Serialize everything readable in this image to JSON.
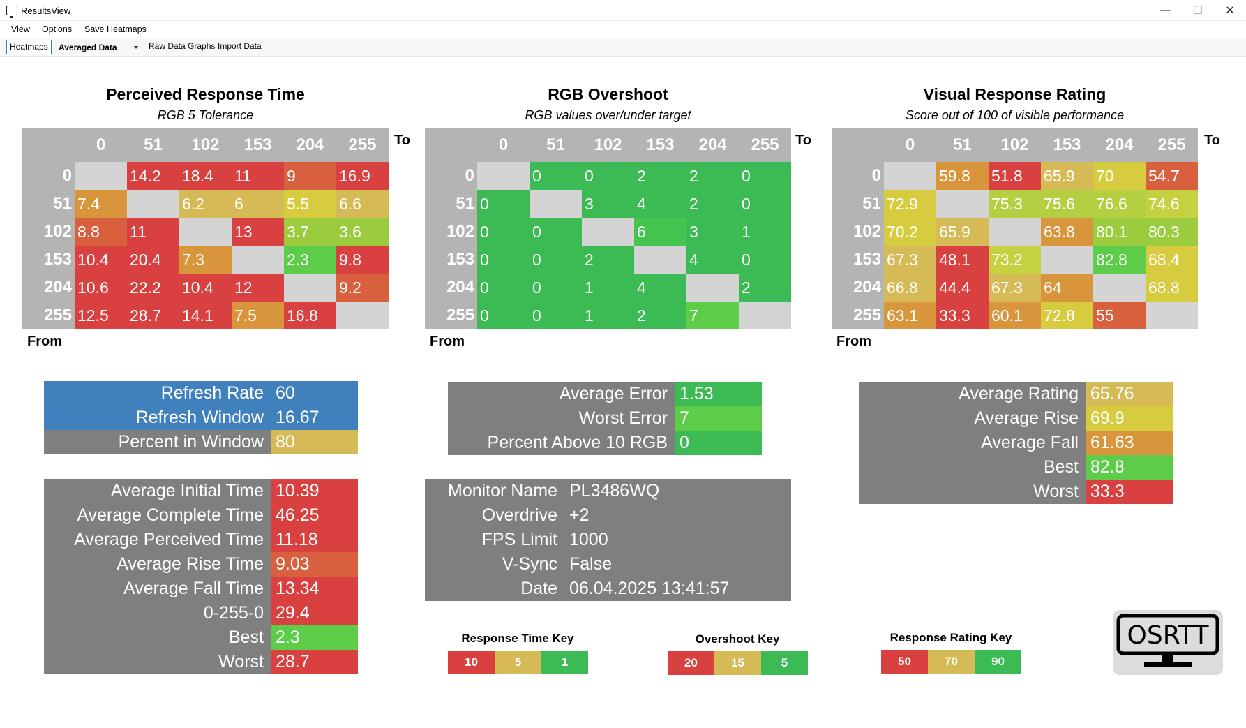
{
  "window": {
    "title": "ResultsView",
    "minimize": "—",
    "maximize": "☐",
    "close": "✕"
  },
  "menu": [
    "View",
    "Options",
    "Save Heatmaps"
  ],
  "toolbar": {
    "heatmaps": "Heatmaps",
    "combo": "Averaged Data",
    "raw": "Raw Data Graphs",
    "import": "Import Data"
  },
  "colors": {
    "red": "#d94040",
    "orange_red": "#d8603e",
    "orange": "#d9953c",
    "amber": "#d6ba55",
    "yellow": "#d7cc3f",
    "yellow_green": "#9bcc3d",
    "green": "#3cba54",
    "bright_green": "#5ccc49",
    "gray_cell": "#d4d4d4",
    "header_gray": "#b4b4b4",
    "stat_gray": "#7f7f7f",
    "blue": "#4081bd"
  },
  "labels": {
    "to": "To",
    "from": "From"
  },
  "heatmaps": [
    {
      "title": "Perceived Response Time",
      "subtitle": "RGB 5 Tolerance",
      "headers": [
        "0",
        "51",
        "102",
        "153",
        "204",
        "255"
      ],
      "rows": [
        [
          {
            "v": "",
            "c": "#d4d4d4"
          },
          {
            "v": "14.2",
            "c": "#d94040"
          },
          {
            "v": "18.4",
            "c": "#d94040"
          },
          {
            "v": "11",
            "c": "#d94040"
          },
          {
            "v": "9",
            "c": "#d8603e"
          },
          {
            "v": "16.9",
            "c": "#d94040"
          }
        ],
        [
          {
            "v": "7.4",
            "c": "#d9953c"
          },
          {
            "v": "",
            "c": "#d4d4d4"
          },
          {
            "v": "6.2",
            "c": "#d6ba55"
          },
          {
            "v": "6",
            "c": "#d6ba55"
          },
          {
            "v": "5.5",
            "c": "#d7cc3f"
          },
          {
            "v": "6.6",
            "c": "#d6ba55"
          }
        ],
        [
          {
            "v": "8.8",
            "c": "#d8603e"
          },
          {
            "v": "11",
            "c": "#d94040"
          },
          {
            "v": "",
            "c": "#d4d4d4"
          },
          {
            "v": "13",
            "c": "#d94040"
          },
          {
            "v": "3.7",
            "c": "#9bcc3d"
          },
          {
            "v": "3.6",
            "c": "#9bcc3d"
          }
        ],
        [
          {
            "v": "10.4",
            "c": "#d94040"
          },
          {
            "v": "20.4",
            "c": "#d94040"
          },
          {
            "v": "7.3",
            "c": "#d9953c"
          },
          {
            "v": "",
            "c": "#d4d4d4"
          },
          {
            "v": "2.3",
            "c": "#5ccc49"
          },
          {
            "v": "9.8",
            "c": "#d94040"
          }
        ],
        [
          {
            "v": "10.6",
            "c": "#d94040"
          },
          {
            "v": "22.2",
            "c": "#d94040"
          },
          {
            "v": "10.4",
            "c": "#d94040"
          },
          {
            "v": "12",
            "c": "#d94040"
          },
          {
            "v": "",
            "c": "#d4d4d4"
          },
          {
            "v": "9.2",
            "c": "#d8603e"
          }
        ],
        [
          {
            "v": "12.5",
            "c": "#d94040"
          },
          {
            "v": "28.7",
            "c": "#d94040"
          },
          {
            "v": "14.1",
            "c": "#d94040"
          },
          {
            "v": "7.5",
            "c": "#d9953c"
          },
          {
            "v": "16.8",
            "c": "#d94040"
          },
          {
            "v": "",
            "c": "#d4d4d4"
          }
        ]
      ]
    },
    {
      "title": "RGB Overshoot",
      "subtitle": "RGB values over/under target",
      "headers": [
        "0",
        "51",
        "102",
        "153",
        "204",
        "255"
      ],
      "rows": [
        [
          {
            "v": "",
            "c": "#d4d4d4"
          },
          {
            "v": "0",
            "c": "#3cba54"
          },
          {
            "v": "0",
            "c": "#3cba54"
          },
          {
            "v": "2",
            "c": "#3cba54"
          },
          {
            "v": "2",
            "c": "#3cba54"
          },
          {
            "v": "0",
            "c": "#3cba54"
          }
        ],
        [
          {
            "v": "0",
            "c": "#3cba54"
          },
          {
            "v": "",
            "c": "#d4d4d4"
          },
          {
            "v": "3",
            "c": "#3cba54"
          },
          {
            "v": "4",
            "c": "#3cba54"
          },
          {
            "v": "2",
            "c": "#3cba54"
          },
          {
            "v": "0",
            "c": "#3cba54"
          }
        ],
        [
          {
            "v": "0",
            "c": "#3cba54"
          },
          {
            "v": "0",
            "c": "#3cba54"
          },
          {
            "v": "",
            "c": "#d4d4d4"
          },
          {
            "v": "6",
            "c": "#45c44f"
          },
          {
            "v": "3",
            "c": "#3cba54"
          },
          {
            "v": "1",
            "c": "#3cba54"
          }
        ],
        [
          {
            "v": "0",
            "c": "#3cba54"
          },
          {
            "v": "0",
            "c": "#3cba54"
          },
          {
            "v": "2",
            "c": "#3cba54"
          },
          {
            "v": "",
            "c": "#d4d4d4"
          },
          {
            "v": "4",
            "c": "#3cba54"
          },
          {
            "v": "0",
            "c": "#3cba54"
          }
        ],
        [
          {
            "v": "0",
            "c": "#3cba54"
          },
          {
            "v": "0",
            "c": "#3cba54"
          },
          {
            "v": "1",
            "c": "#3cba54"
          },
          {
            "v": "4",
            "c": "#3cba54"
          },
          {
            "v": "",
            "c": "#d4d4d4"
          },
          {
            "v": "2",
            "c": "#3cba54"
          }
        ],
        [
          {
            "v": "0",
            "c": "#3cba54"
          },
          {
            "v": "0",
            "c": "#3cba54"
          },
          {
            "v": "1",
            "c": "#3cba54"
          },
          {
            "v": "2",
            "c": "#3cba54"
          },
          {
            "v": "7",
            "c": "#5ccc49"
          },
          {
            "v": "",
            "c": "#d4d4d4"
          }
        ]
      ]
    },
    {
      "title": "Visual Response Rating",
      "subtitle": "Score out of 100 of visible performance",
      "headers": [
        "0",
        "51",
        "102",
        "153",
        "204",
        "255"
      ],
      "rows": [
        [
          {
            "v": "",
            "c": "#d4d4d4"
          },
          {
            "v": "59.8",
            "c": "#d9953c"
          },
          {
            "v": "51.8",
            "c": "#d94040"
          },
          {
            "v": "65.9",
            "c": "#d6ba55"
          },
          {
            "v": "70",
            "c": "#d7cc3f"
          },
          {
            "v": "54.7",
            "c": "#d8603e"
          }
        ],
        [
          {
            "v": "72.9",
            "c": "#d7cc3f"
          },
          {
            "v": "",
            "c": "#d4d4d4"
          },
          {
            "v": "75.3",
            "c": "#b5cf42"
          },
          {
            "v": "75.6",
            "c": "#b5cf42"
          },
          {
            "v": "76.6",
            "c": "#b5cf42"
          },
          {
            "v": "74.6",
            "c": "#c5d140"
          }
        ],
        [
          {
            "v": "70.2",
            "c": "#d7cc3f"
          },
          {
            "v": "65.9",
            "c": "#d6ba55"
          },
          {
            "v": "",
            "c": "#d4d4d4"
          },
          {
            "v": "63.8",
            "c": "#d9953c"
          },
          {
            "v": "80.1",
            "c": "#9bcc3d"
          },
          {
            "v": "80.3",
            "c": "#9bcc3d"
          }
        ],
        [
          {
            "v": "67.3",
            "c": "#d6ba55"
          },
          {
            "v": "48.1",
            "c": "#d94040"
          },
          {
            "v": "73.2",
            "c": "#c5d140"
          },
          {
            "v": "",
            "c": "#d4d4d4"
          },
          {
            "v": "82.8",
            "c": "#5ccc49"
          },
          {
            "v": "68.4",
            "c": "#d7cc3f"
          }
        ],
        [
          {
            "v": "66.8",
            "c": "#d6ba55"
          },
          {
            "v": "44.4",
            "c": "#d94040"
          },
          {
            "v": "67.3",
            "c": "#d6ba55"
          },
          {
            "v": "64",
            "c": "#d9953c"
          },
          {
            "v": "",
            "c": "#d4d4d4"
          },
          {
            "v": "68.8",
            "c": "#d7cc3f"
          }
        ],
        [
          {
            "v": "63.1",
            "c": "#d9953c"
          },
          {
            "v": "33.3",
            "c": "#d94040"
          },
          {
            "v": "60.1",
            "c": "#d9953c"
          },
          {
            "v": "72.8",
            "c": "#d7cc3f"
          },
          {
            "v": "55",
            "c": "#d8603e"
          },
          {
            "v": "",
            "c": "#d4d4d4"
          }
        ]
      ]
    }
  ],
  "refresh_table": [
    {
      "label": "Refresh Rate",
      "value": "60",
      "bg": "#4081bd",
      "vbg": "#4081bd"
    },
    {
      "label": "Refresh Window",
      "value": "16.67",
      "bg": "#4081bd",
      "vbg": "#4081bd"
    },
    {
      "label": "Percent in Window",
      "value": "80",
      "bg": "#7f7f7f",
      "vbg": "#d6ba55"
    }
  ],
  "time_table": [
    {
      "label": "Average Initial Time",
      "value": "10.39",
      "vbg": "#d94040"
    },
    {
      "label": "Average Complete Time",
      "value": "46.25",
      "vbg": "#d94040"
    },
    {
      "label": "Average Perceived Time",
      "value": "11.18",
      "vbg": "#d94040"
    },
    {
      "label": "Average Rise Time",
      "value": "9.03",
      "vbg": "#d8603e"
    },
    {
      "label": "Average Fall Time",
      "value": "13.34",
      "vbg": "#d94040"
    },
    {
      "label": "0-255-0",
      "value": "29.4",
      "vbg": "#d94040"
    },
    {
      "label": "Best",
      "value": "2.3",
      "vbg": "#5ccc49"
    },
    {
      "label": "Worst",
      "value": "28.7",
      "vbg": "#d94040"
    }
  ],
  "error_table": [
    {
      "label": "Average Error",
      "value": "1.53",
      "vbg": "#3cba54"
    },
    {
      "label": "Worst Error",
      "value": "7",
      "vbg": "#5ccc49"
    },
    {
      "label": "Percent Above 10 RGB",
      "value": "0",
      "vbg": "#3cba54"
    }
  ],
  "monitor_table": [
    {
      "label": "Monitor Name",
      "value": "PL3486WQ"
    },
    {
      "label": "Overdrive",
      "value": "+2"
    },
    {
      "label": "FPS Limit",
      "value": "1000"
    },
    {
      "label": "V-Sync",
      "value": "False"
    },
    {
      "label": "Date",
      "value": "06.04.2025 13:41:57"
    }
  ],
  "rating_table": [
    {
      "label": "Average Rating",
      "value": "65.76",
      "vbg": "#d6ba55"
    },
    {
      "label": "Average Rise",
      "value": "69.9",
      "vbg": "#d7cc3f"
    },
    {
      "label": "Average Fall",
      "value": "61.63",
      "vbg": "#d9953c"
    },
    {
      "label": "Best",
      "value": "82.8",
      "vbg": "#5ccc49"
    },
    {
      "label": "Worst",
      "value": "33.3",
      "vbg": "#d94040"
    }
  ],
  "keys": [
    {
      "title": "Response Time Key",
      "cells": [
        {
          "v": "10",
          "c": "#d94040"
        },
        {
          "v": "5",
          "c": "#d6ba55"
        },
        {
          "v": "1",
          "c": "#3cba54"
        }
      ]
    },
    {
      "title": "Overshoot Key",
      "cells": [
        {
          "v": "20",
          "c": "#d94040"
        },
        {
          "v": "15",
          "c": "#d6ba55"
        },
        {
          "v": "5",
          "c": "#3cba54"
        }
      ]
    },
    {
      "title": "Response Rating Key",
      "cells": [
        {
          "v": "50",
          "c": "#d94040"
        },
        {
          "v": "70",
          "c": "#d6ba55"
        },
        {
          "v": "90",
          "c": "#3cba54"
        }
      ]
    }
  ],
  "logo": {
    "text": "OSRTT",
    "icon": "monitor-logo-icon"
  }
}
